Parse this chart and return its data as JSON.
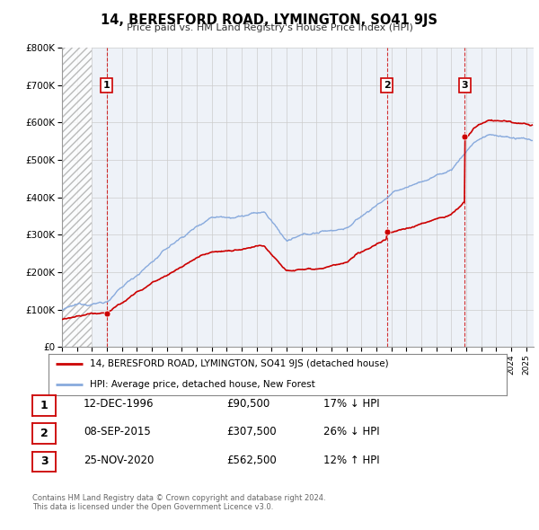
{
  "title": "14, BERESFORD ROAD, LYMINGTON, SO41 9JS",
  "subtitle": "Price paid vs. HM Land Registry's House Price Index (HPI)",
  "ylabel_ticks": [
    "£0",
    "£100K",
    "£200K",
    "£300K",
    "£400K",
    "£500K",
    "£600K",
    "£700K",
    "£800K"
  ],
  "ylim": [
    0,
    800000
  ],
  "xlim_start": 1994.0,
  "xlim_end": 2025.5,
  "sale_dates": [
    1996.97,
    2015.69,
    2020.9
  ],
  "sale_prices": [
    90500,
    307500,
    562500
  ],
  "sale_labels": [
    "1",
    "2",
    "3"
  ],
  "vline_dates": [
    1996.97,
    2015.69,
    2020.9
  ],
  "red_line_color": "#cc0000",
  "blue_line_color": "#88aadd",
  "sale_marker_color": "#cc0000",
  "grid_color": "#cccccc",
  "legend_entries": [
    "14, BERESFORD ROAD, LYMINGTON, SO41 9JS (detached house)",
    "HPI: Average price, detached house, New Forest"
  ],
  "table_rows": [
    [
      "1",
      "12-DEC-1996",
      "£90,500",
      "17% ↓ HPI"
    ],
    [
      "2",
      "08-SEP-2015",
      "£307,500",
      "26% ↓ HPI"
    ],
    [
      "3",
      "25-NOV-2020",
      "£562,500",
      "12% ↑ HPI"
    ]
  ],
  "footnote1": "Contains HM Land Registry data © Crown copyright and database right 2024.",
  "footnote2": "This data is licensed under the Open Government Licence v3.0.",
  "bg_color": "#ffffff",
  "plot_bg_color": "#eef2f8"
}
